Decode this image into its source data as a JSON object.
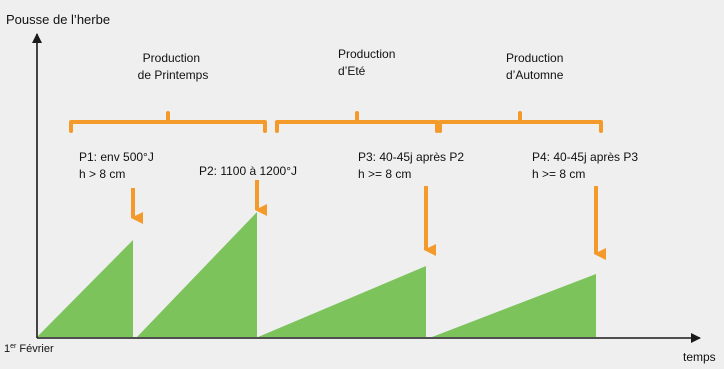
{
  "colors": {
    "background": "#efefef",
    "green": "#7dc35b",
    "orange": "#f39a2a",
    "axis": "#1a1a1a",
    "text": "#111111"
  },
  "axes": {
    "y_label": "Pousse de l’herbe",
    "x_label": "temps",
    "origin_label_main": "1",
    "origin_label_sup": "er",
    "origin_label_rest": " Février"
  },
  "seasons": [
    {
      "line1": "Production",
      "line2": "de Printemps"
    },
    {
      "line1": "Production",
      "line2": "d’Eté"
    },
    {
      "line1": "Production",
      "line2": "d’Automne"
    }
  ],
  "cuts": [
    {
      "line1": "P1: env 500°J",
      "line2": "h > 8 cm"
    },
    {
      "line1": "P2: 1100 à 1200°J",
      "line2": ""
    },
    {
      "line1": "P3: 40-45j après P2",
      "line2": "h >= 8 cm"
    },
    {
      "line1": "P4: 40-45j après P3",
      "line2": "h >= 8 cm"
    }
  ]
}
